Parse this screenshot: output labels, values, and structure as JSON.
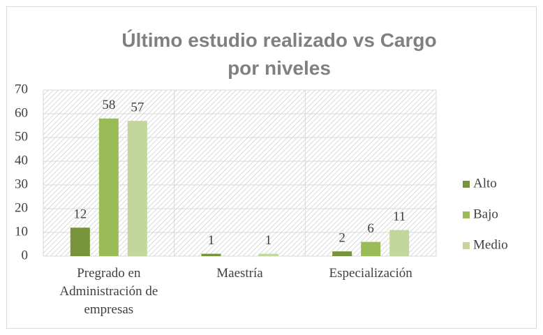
{
  "chart_data": {
    "type": "bar",
    "title": "Último estudio realizado vs Cargo por niveles",
    "categories": [
      "Pregrado en Administración de empresas",
      "Maestría",
      "Especialización"
    ],
    "series": [
      {
        "name": "Alto",
        "color": "#77933c",
        "values": [
          12,
          1,
          2
        ]
      },
      {
        "name": "Bajo",
        "color": "#9bbb59",
        "values": [
          58,
          null,
          6
        ]
      },
      {
        "name": "Medio",
        "color": "#c3d69b",
        "values": [
          57,
          1,
          11
        ]
      }
    ],
    "ylim": [
      0,
      70
    ],
    "yticks": [
      0,
      10,
      20,
      30,
      40,
      50,
      60,
      70
    ],
    "grid": true,
    "legend": "right"
  }
}
